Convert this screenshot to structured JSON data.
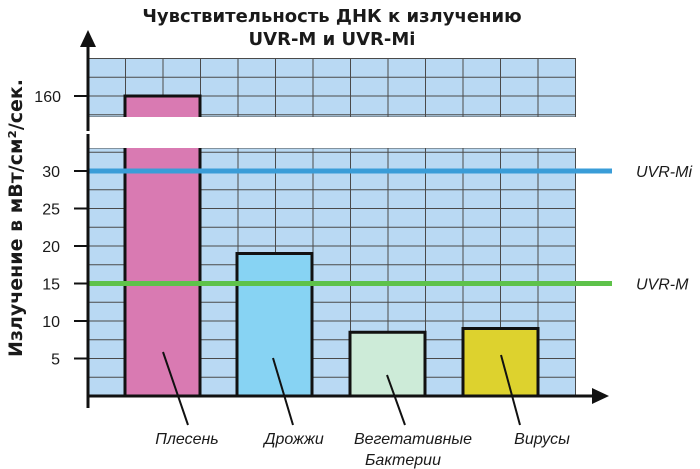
{
  "chart_data": {
    "type": "bar",
    "title_line1": "Чувствительность ДНК к излучению",
    "title_line2": "UVR-M и UVR-Mi",
    "ylabel": "Излучение в мВт/см²/сек.",
    "xlabel": "",
    "categories": [
      {
        "line1": "Плесень",
        "line2": ""
      },
      {
        "line1": "Дрожжи",
        "line2": ""
      },
      {
        "line1": "Вегетативные",
        "line2": "Бактерии"
      },
      {
        "line1": "Вирусы",
        "line2": ""
      }
    ],
    "values": [
      160,
      19,
      8.5,
      9
    ],
    "colors": [
      "#d97ab2",
      "#87d3f3",
      "#cdebd8",
      "#ddd22e"
    ],
    "y_ticks_lower": [
      5,
      10,
      15,
      20,
      25,
      30
    ],
    "y_ticks_upper": [
      160
    ],
    "ylim": [
      0,
      35
    ],
    "y_break": [
      35,
      155
    ],
    "grid": true,
    "grid_color": "#b9d9f3",
    "reference_lines": [
      {
        "label": "UVR-Mi",
        "value": 30,
        "color": "#3a9dd8"
      },
      {
        "label": "UVR-M",
        "value": 15,
        "color": "#5ec24a"
      }
    ]
  }
}
